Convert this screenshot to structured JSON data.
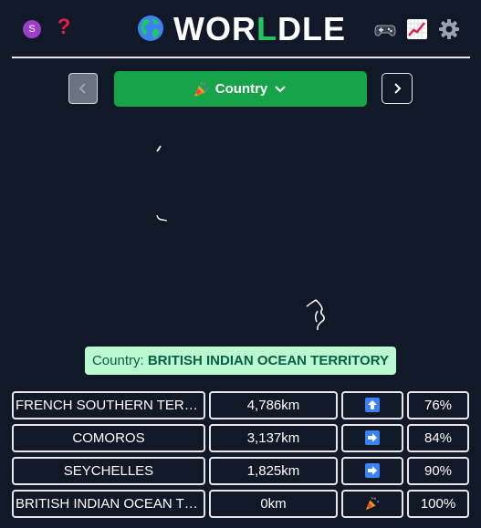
{
  "header": {
    "avatar_letter": "S",
    "help_symbol": "?",
    "title_parts": [
      "WOR",
      "L",
      "DLE"
    ],
    "icons": [
      "globe-icon",
      "gamepad-icon",
      "chart-icon",
      "gear-icon"
    ]
  },
  "nav": {
    "prev_icon": "chevron-left-icon",
    "next_icon": "chevron-right-icon",
    "mode_label": "Country",
    "mode_icon": "party-popper-icon",
    "dropdown_icon": "chevron-down-icon"
  },
  "answer": {
    "prefix": "Country: ",
    "value": "BRITISH INDIAN OCEAN TERRITORY"
  },
  "guesses": [
    {
      "name": "FRENCH SOUTHERN TERRITORIES",
      "distance": "4,786km",
      "direction": "arrow-up-icon",
      "proximity": "76%"
    },
    {
      "name": "COMOROS",
      "distance": "3,137km",
      "direction": "arrow-right-icon",
      "proximity": "84%"
    },
    {
      "name": "SEYCHELLES",
      "distance": "1,825km",
      "direction": "arrow-right-icon",
      "proximity": "90%"
    },
    {
      "name": "BRITISH INDIAN OCEAN TERRITORY",
      "distance": "0km",
      "direction": "party-popper-icon",
      "proximity": "100%"
    }
  ],
  "colors": {
    "background": "#111827",
    "accent_green": "#16a34a",
    "answer_bg": "#bbf7d0",
    "direction_blue": "#3b82f6"
  }
}
